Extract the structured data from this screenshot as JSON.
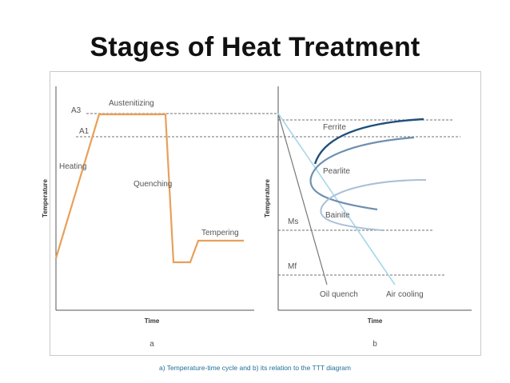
{
  "title": "Stages of Heat Treatment",
  "caption": "a) Temperature-time cycle and b) its relation to the TTT diagram",
  "panel_a": {
    "letter": "a",
    "x_axis_label": "Time",
    "y_axis_label": "Temperature",
    "level_labels": {
      "a3": "A3",
      "a1": "A1"
    },
    "stage_labels": {
      "heating": "Heating",
      "austenitizing": "Austenitizing",
      "quenching": "Quenching",
      "tempering": "Tempering"
    }
  },
  "panel_b": {
    "letter": "b",
    "x_axis_label": "Time",
    "y_axis_label": "Temperature",
    "level_labels": {
      "ms": "Ms",
      "mf": "Mf"
    },
    "phase_labels": {
      "ferrite": "Ferrite",
      "pearlite": "Pearlite",
      "bainite": "Bainite"
    },
    "path_labels": {
      "oil_quench": "Oil quench",
      "air_cooling": "Air cooling"
    }
  },
  "colors": {
    "cycle_curve": "#e8a05a",
    "ferrite_curve": "#1f4f7a",
    "pearlite_curve": "#6e8fb0",
    "bainite_curve": "#a9c0d8",
    "oil_quench_line": "#777777",
    "air_cooling_line": "#a8d6ea",
    "caption_text": "#1f6e9a"
  }
}
